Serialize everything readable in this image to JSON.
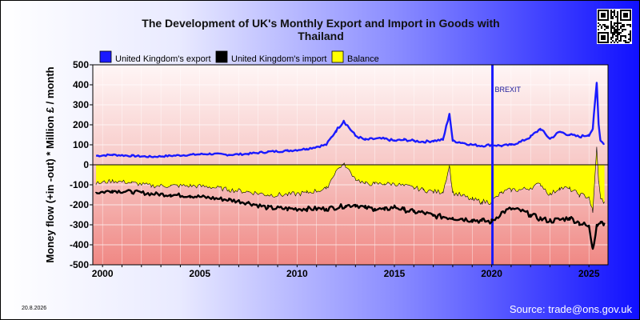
{
  "chart_data": {
    "type": "line",
    "title_line1": "The Development of UK's Monthly Export and Import in Goods with",
    "title_line2": "Thailand",
    "ylabel": "Money flow (+in -out) * Million £ / month",
    "ylim": [
      -500,
      500
    ],
    "yticks": [
      "500",
      "400",
      "300",
      "200",
      "100",
      "0",
      "-100",
      "-200",
      "-300",
      "-400",
      "-500"
    ],
    "xticks": [
      "2000",
      "2005",
      "2010",
      "2015",
      "2020",
      "2025"
    ],
    "grid": true,
    "legend_position": "top-left",
    "annotation": "BREXIT",
    "brexit_date": 2020.04,
    "series": [
      {
        "name": "United Kingdom's export",
        "color": "#1a1aff",
        "x": [
          1999.67,
          2000.5,
          2001.5,
          2002.5,
          2003.5,
          2004.5,
          2005.5,
          2006.5,
          2007.5,
          2008.5,
          2009.5,
          2010.5,
          2011.5,
          2012.0,
          2012.4,
          2013.0,
          2013.5,
          2014.0,
          2014.5,
          2015.0,
          2015.5,
          2016.0,
          2016.5,
          2017.0,
          2017.5,
          2017.83,
          2018.0,
          2018.5,
          2019.0,
          2019.5,
          2020.0,
          2020.5,
          2021.0,
          2021.5,
          2022.0,
          2022.5,
          2023.0,
          2023.5,
          2024.0,
          2024.5,
          2025.0,
          2025.2,
          2025.4,
          2025.5,
          2025.6,
          2025.8
        ],
        "values": [
          45,
          50,
          45,
          40,
          45,
          50,
          55,
          50,
          55,
          65,
          70,
          80,
          100,
          170,
          220,
          145,
          125,
          130,
          130,
          120,
          125,
          120,
          115,
          120,
          125,
          255,
          120,
          110,
          100,
          95,
          100,
          95,
          100,
          115,
          140,
          180,
          130,
          165,
          150,
          140,
          150,
          180,
          410,
          200,
          120,
          105
        ]
      },
      {
        "name": "United Kingdom's import",
        "color": "#000000",
        "x": [
          1999.67,
          2000.5,
          2001.5,
          2002.5,
          2003.5,
          2004.5,
          2005.5,
          2006.5,
          2007.5,
          2008.5,
          2009.5,
          2010.5,
          2011.5,
          2012.5,
          2013.0,
          2013.5,
          2014.0,
          2014.5,
          2015.0,
          2015.5,
          2016.0,
          2016.5,
          2017.0,
          2017.5,
          2018.0,
          2018.5,
          2019.0,
          2019.5,
          2020.0,
          2020.5,
          2021.0,
          2021.5,
          2022.0,
          2022.5,
          2023.0,
          2023.5,
          2024.0,
          2024.5,
          2025.0,
          2025.2,
          2025.4,
          2025.6,
          2025.8
        ],
        "values": [
          -140,
          -130,
          -135,
          -145,
          -150,
          -155,
          -165,
          -175,
          -190,
          -215,
          -220,
          -220,
          -220,
          -205,
          -200,
          -215,
          -220,
          -225,
          -210,
          -225,
          -235,
          -240,
          -255,
          -260,
          -265,
          -270,
          -275,
          -280,
          -285,
          -240,
          -220,
          -230,
          -250,
          -270,
          -280,
          -275,
          -265,
          -290,
          -310,
          -420,
          -300,
          -285,
          -290
        ]
      },
      {
        "name": "Balance",
        "color": "#ffff00",
        "x": [
          1999.67,
          2000.5,
          2001.5,
          2002.5,
          2003.5,
          2004.5,
          2005.5,
          2006.5,
          2007.5,
          2008.5,
          2009.5,
          2010.5,
          2011.5,
          2012.0,
          2012.4,
          2013.0,
          2013.5,
          2014.0,
          2014.5,
          2015.0,
          2015.5,
          2016.0,
          2016.5,
          2017.0,
          2017.5,
          2017.83,
          2018.0,
          2018.5,
          2019.0,
          2019.5,
          2020.0,
          2020.5,
          2021.0,
          2021.5,
          2022.0,
          2022.5,
          2023.0,
          2023.5,
          2024.0,
          2024.5,
          2025.0,
          2025.2,
          2025.4,
          2025.5,
          2025.6,
          2025.8
        ],
        "values": [
          -95,
          -80,
          -90,
          -105,
          -105,
          -105,
          -110,
          -125,
          -135,
          -150,
          -150,
          -140,
          -120,
          -30,
          5,
          -70,
          -95,
          -95,
          -95,
          -95,
          -105,
          -115,
          -125,
          -135,
          -135,
          -5,
          -140,
          -155,
          -175,
          -185,
          -185,
          -140,
          -125,
          -125,
          -115,
          -95,
          -150,
          -115,
          -120,
          -150,
          -160,
          -240,
          90,
          -85,
          -170,
          -185
        ]
      }
    ]
  },
  "footer": {
    "date": "20.8.2026",
    "source": "Source: trade@ons.gov.uk"
  },
  "colors": {
    "export": "#1a1aff",
    "import": "#000000",
    "balance": "#ffff00",
    "brexit_line": "#1a1aff"
  },
  "qr_icon": "qr-code-icon"
}
